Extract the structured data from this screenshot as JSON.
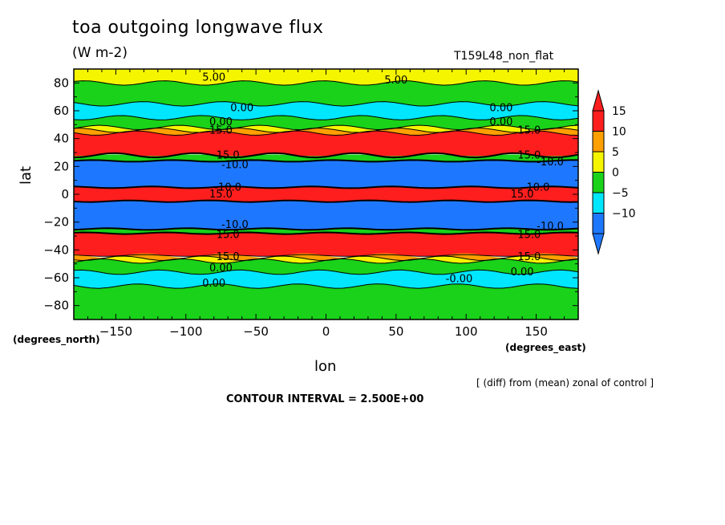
{
  "chart_data": {
    "type": "heatmap",
    "title": "toa outgoing longwave flux",
    "units": "(W m-2)",
    "run_label": "T159L48_non_flat",
    "xlabel": "lon",
    "ylabel": "lat",
    "x_units_label": "(degrees_east)",
    "y_units_label": "(degrees_north)",
    "note": "[ (diff) from (mean) zonal of control ]",
    "contour_interval": "CONTOUR INTERVAL = 2.500E+00",
    "xlim": [
      -180,
      180
    ],
    "ylim": [
      -90,
      90
    ],
    "xticks": [
      -150,
      -100,
      -50,
      0,
      50,
      100,
      150
    ],
    "yticks": [
      -80,
      -60,
      -40,
      -20,
      0,
      20,
      40,
      60,
      80
    ],
    "colorbar": {
      "levels": [
        -10,
        -5,
        0,
        5,
        10,
        15
      ],
      "colors": [
        "#1e78ff",
        "#00e6ff",
        "#19d219",
        "#f5f500",
        "#ff9f00",
        "#ff1e1e"
      ]
    },
    "bands": [
      {
        "lat_min": 80,
        "lat_max": 90,
        "color": "#f5f500",
        "value_range": [
          5,
          10
        ]
      },
      {
        "lat_min": 65,
        "lat_max": 80,
        "color": "#19d219",
        "value_range": [
          0,
          5
        ]
      },
      {
        "lat_min": 55,
        "lat_max": 65,
        "color": "#00e6ff",
        "value_range": [
          -5,
          0
        ]
      },
      {
        "lat_min": 48,
        "lat_max": 55,
        "color": "#19d219",
        "value_range": [
          0,
          5
        ]
      },
      {
        "lat_min": 46,
        "lat_max": 48,
        "color": "#f5f500",
        "value_range": [
          5,
          10
        ]
      },
      {
        "lat_min": 44,
        "lat_max": 46,
        "color": "#ff9f00",
        "value_range": [
          10,
          15
        ]
      },
      {
        "lat_min": 28,
        "lat_max": 44,
        "color": "#ff1e1e",
        "value_range": [
          15,
          20
        ]
      },
      {
        "lat_min": 24,
        "lat_max": 28,
        "color": "#19d219",
        "value_range": [
          0,
          5
        ]
      },
      {
        "lat_min": 5,
        "lat_max": 24,
        "color": "#1e78ff",
        "value_range": [
          -15,
          -10
        ]
      },
      {
        "lat_min": -5,
        "lat_max": 5,
        "color": "#ff1e1e",
        "value_range": [
          15,
          20
        ]
      },
      {
        "lat_min": -25,
        "lat_max": -5,
        "color": "#1e78ff",
        "value_range": [
          -15,
          -10
        ]
      },
      {
        "lat_min": -28,
        "lat_max": -25,
        "color": "#19d219",
        "value_range": [
          0,
          5
        ]
      },
      {
        "lat_min": -44,
        "lat_max": -28,
        "color": "#ff1e1e",
        "value_range": [
          15,
          20
        ]
      },
      {
        "lat_min": -46,
        "lat_max": -44,
        "color": "#ff9f00",
        "value_range": [
          10,
          15
        ]
      },
      {
        "lat_min": -48,
        "lat_max": -46,
        "color": "#f5f500",
        "value_range": [
          5,
          10
        ]
      },
      {
        "lat_min": -56,
        "lat_max": -48,
        "color": "#19d219",
        "value_range": [
          0,
          5
        ]
      },
      {
        "lat_min": -66,
        "lat_max": -56,
        "color": "#00e6ff",
        "value_range": [
          -5,
          0
        ]
      },
      {
        "lat_min": -90,
        "lat_max": -66,
        "color": "#19d219",
        "value_range": [
          0,
          5
        ]
      }
    ],
    "contour_labels": [
      {
        "text": "5.00",
        "lon": -80,
        "lat": 84
      },
      {
        "text": "5.00",
        "lon": 50,
        "lat": 82
      },
      {
        "text": "0.00",
        "lon": -60,
        "lat": 62
      },
      {
        "text": "0.00",
        "lon": 125,
        "lat": 62
      },
      {
        "text": "0.00",
        "lon": -75,
        "lat": 52
      },
      {
        "text": "0.00",
        "lon": 125,
        "lat": 52
      },
      {
        "text": "15.0",
        "lon": -75,
        "lat": 46
      },
      {
        "text": "15.0",
        "lon": 145,
        "lat": 46
      },
      {
        "text": "15.0",
        "lon": -70,
        "lat": 28
      },
      {
        "text": "15.0",
        "lon": 145,
        "lat": 28
      },
      {
        "text": "-10.0",
        "lon": -65,
        "lat": 21
      },
      {
        "text": "-10.0",
        "lon": 160,
        "lat": 23
      },
      {
        "text": "-10.0",
        "lon": -70,
        "lat": 5
      },
      {
        "text": "-10.0",
        "lon": 150,
        "lat": 5
      },
      {
        "text": "15.0",
        "lon": -75,
        "lat": 0
      },
      {
        "text": "15.0",
        "lon": 140,
        "lat": 0
      },
      {
        "text": "-10.0",
        "lon": -65,
        "lat": -22
      },
      {
        "text": "-10.0",
        "lon": 160,
        "lat": -23
      },
      {
        "text": "15.0",
        "lon": -70,
        "lat": -29
      },
      {
        "text": "15.0",
        "lon": 145,
        "lat": -29
      },
      {
        "text": "15.0",
        "lon": -70,
        "lat": -45
      },
      {
        "text": "15.0",
        "lon": 145,
        "lat": -45
      },
      {
        "text": "0.00",
        "lon": -75,
        "lat": -53
      },
      {
        "text": "0.00",
        "lon": 140,
        "lat": -56
      },
      {
        "text": "-0.00",
        "lon": 95,
        "lat": -61
      },
      {
        "text": "0.00",
        "lon": -80,
        "lat": -64
      }
    ]
  }
}
